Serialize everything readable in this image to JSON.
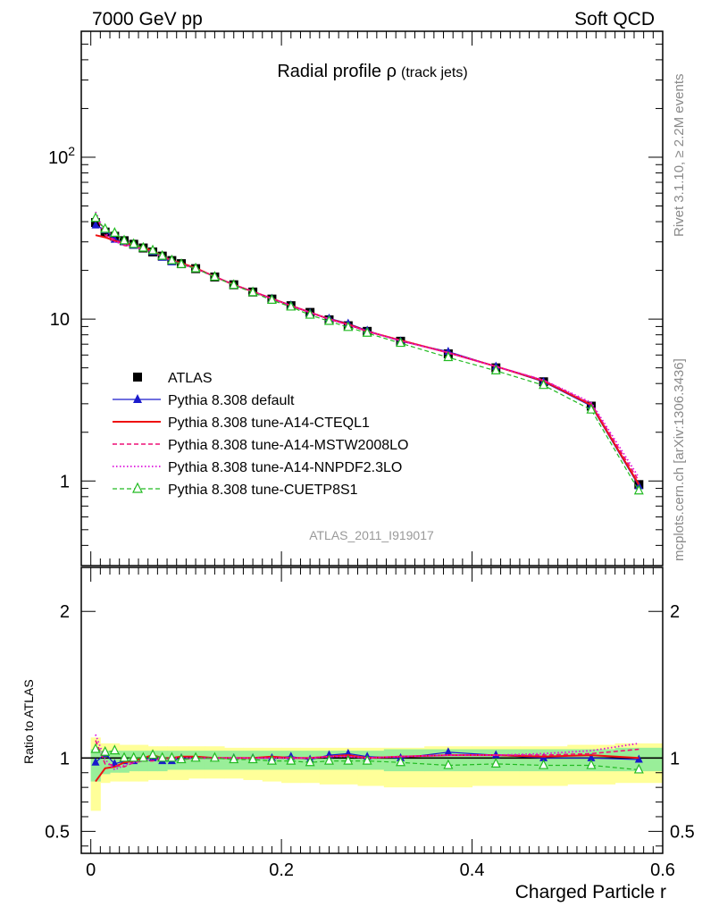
{
  "header": {
    "left": "7000 GeV pp",
    "right": "Soft QCD"
  },
  "title": {
    "main": "Radial profile ρ",
    "sub": "(track jets)"
  },
  "side_labels": {
    "top": "Rivet 3.1.10, ≥ 2.2M events",
    "bottom": "mcplots.cern.ch [arXiv:1306.3436]"
  },
  "watermark": "ATLAS_2011_I919017",
  "xlabel": "Charged Particle r",
  "ratio_ylabel": "Ratio to ATLAS",
  "colors": {
    "atlas": "#000000",
    "default": "#1a1acc",
    "cteql1": "#ee1111",
    "mstw": "#ee1177",
    "nnpdf": "#dd11dd",
    "cuetp8s1": "#22bb22",
    "band_yellow": "#ffff99",
    "band_green": "#99ee99"
  },
  "chart_data": [
    {
      "type": "line",
      "yscale": "log",
      "xlim": [
        -0.01,
        0.6
      ],
      "ylim": [
        0.3,
        600
      ],
      "y_ticks": [
        "1",
        "10",
        "10^2"
      ],
      "x": [
        0.005,
        0.015,
        0.025,
        0.035,
        0.045,
        0.055,
        0.065,
        0.075,
        0.085,
        0.095,
        0.11,
        0.13,
        0.15,
        0.17,
        0.19,
        0.21,
        0.23,
        0.25,
        0.27,
        0.29,
        0.325,
        0.375,
        0.425,
        0.475,
        0.525,
        0.575
      ],
      "series": [
        {
          "name": "ATLAS",
          "style": "marker-square",
          "values": [
            39.5,
            34.5,
            32.5,
            30.5,
            29,
            27.5,
            26,
            24.5,
            23,
            22,
            20.5,
            18.2,
            16.3,
            14.7,
            13.3,
            12.1,
            11,
            9.9,
            9.1,
            8.4,
            7.3,
            6.1,
            5.0,
            4.1,
            2.9,
            0.95
          ]
        },
        {
          "name": "Pythia 8.308 default",
          "style": "line-triangle",
          "values": [
            38,
            35.5,
            31,
            30,
            28.5,
            27.5,
            26,
            24,
            22.5,
            22,
            20.5,
            18.3,
            16.3,
            14.8,
            13.4,
            12.2,
            10.9,
            10.1,
            9.4,
            8.5,
            7.3,
            6.3,
            5.1,
            4.1,
            2.9,
            0.93
          ]
        },
        {
          "name": "Pythia 8.308 tune-A14-CTEQL1",
          "style": "line-solid",
          "values": [
            33,
            32,
            30.5,
            29.5,
            28.5,
            27.5,
            26.5,
            24.5,
            23,
            22.2,
            20.7,
            18.3,
            16.3,
            14.8,
            13.4,
            12.1,
            11,
            10,
            9.3,
            8.4,
            7.4,
            6.2,
            5.1,
            4.15,
            2.95,
            0.95
          ]
        },
        {
          "name": "Pythia 8.308 tune-A14-MSTW2008LO",
          "style": "line-dashed",
          "values": [
            44,
            33,
            31,
            28.5,
            28,
            27,
            25.5,
            24.5,
            22.8,
            21.8,
            20.5,
            18.3,
            16.3,
            14.8,
            13.4,
            12.1,
            11,
            10,
            9.2,
            8.4,
            7.35,
            6.2,
            5.1,
            4.2,
            3.0,
            1.0
          ]
        },
        {
          "name": "Pythia 8.308 tune-A14-NNPDF2.3LO",
          "style": "line-dotted",
          "values": [
            46,
            34,
            30,
            29,
            28,
            27,
            26,
            24.5,
            23,
            22,
            20.5,
            18.3,
            16.3,
            14.8,
            13.4,
            12.1,
            11,
            10,
            9.2,
            8.4,
            7.35,
            6.2,
            5.1,
            4.2,
            3.05,
            1.05
          ]
        },
        {
          "name": "Pythia 8.308 tune-CUETP8S1",
          "style": "dashed-open-triangle",
          "values": [
            42,
            36,
            34,
            30.5,
            29,
            27.5,
            26.5,
            24.5,
            23,
            21.8,
            20.5,
            18.2,
            16.2,
            14.6,
            13.1,
            11.9,
            10.6,
            9.7,
            8.9,
            8.2,
            7.1,
            5.8,
            4.8,
            3.9,
            2.75,
            0.87
          ]
        }
      ]
    },
    {
      "type": "line",
      "ylabel": "Ratio to ATLAS",
      "xlabel": "Charged Particle r",
      "xlim": [
        -0.01,
        0.6
      ],
      "ylim": [
        0.35,
        2.3
      ],
      "x_ticks": [
        "0",
        "0.2",
        "0.4",
        "0.6"
      ],
      "y_ticks": [
        "0.5",
        "1",
        "2"
      ],
      "x": [
        0.005,
        0.015,
        0.025,
        0.035,
        0.045,
        0.055,
        0.065,
        0.075,
        0.085,
        0.095,
        0.11,
        0.13,
        0.15,
        0.17,
        0.19,
        0.21,
        0.23,
        0.25,
        0.27,
        0.29,
        0.325,
        0.375,
        0.425,
        0.475,
        0.525,
        0.575
      ],
      "bands": {
        "yellow_low": [
          0.64,
          0.83,
          0.84,
          0.84,
          0.84,
          0.84,
          0.85,
          0.85,
          0.85,
          0.85,
          0.86,
          0.86,
          0.86,
          0.85,
          0.84,
          0.83,
          0.83,
          0.82,
          0.82,
          0.81,
          0.8,
          0.8,
          0.81,
          0.81,
          0.82,
          0.83
        ],
        "yellow_high": [
          1.14,
          1.1,
          1.1,
          1.09,
          1.09,
          1.09,
          1.08,
          1.08,
          1.08,
          1.08,
          1.08,
          1.08,
          1.07,
          1.07,
          1.07,
          1.07,
          1.07,
          1.07,
          1.07,
          1.07,
          1.07,
          1.08,
          1.08,
          1.08,
          1.09,
          1.1
        ],
        "green_low": [
          0.84,
          0.89,
          0.9,
          0.9,
          0.91,
          0.91,
          0.91,
          0.91,
          0.92,
          0.92,
          0.92,
          0.92,
          0.92,
          0.92,
          0.92,
          0.92,
          0.92,
          0.92,
          0.92,
          0.92,
          0.91,
          0.91,
          0.91,
          0.91,
          0.91,
          0.91
        ],
        "green_high": [
          1.06,
          1.05,
          1.05,
          1.05,
          1.05,
          1.05,
          1.05,
          1.05,
          1.05,
          1.05,
          1.05,
          1.05,
          1.05,
          1.05,
          1.05,
          1.05,
          1.05,
          1.05,
          1.05,
          1.05,
          1.06,
          1.06,
          1.06,
          1.06,
          1.06,
          1.07
        ]
      },
      "series": [
        {
          "name": "ATLAS",
          "values": [
            1,
            1,
            1,
            1,
            1,
            1,
            1,
            1,
            1,
            1,
            1,
            1,
            1,
            1,
            1,
            1,
            1,
            1,
            1,
            1,
            1,
            1,
            1,
            1,
            1,
            1
          ]
        },
        {
          "name": "Pythia 8.308 default",
          "values": [
            0.97,
            1.03,
            0.96,
            0.98,
            0.98,
            1.0,
            1.0,
            0.98,
            0.98,
            1.0,
            1.0,
            1.0,
            1.0,
            1.0,
            1.0,
            1.01,
            0.99,
            1.02,
            1.03,
            1.01,
            1.0,
            1.04,
            1.02,
            1.0,
            1.0,
            0.99
          ]
        },
        {
          "name": "Pythia 8.308 tune-A14-CTEQL1",
          "values": [
            0.84,
            0.93,
            0.94,
            0.97,
            0.98,
            1.0,
            1.02,
            1.0,
            1.0,
            1.01,
            1.01,
            1.0,
            1.0,
            1.0,
            1.01,
            1.0,
            1.0,
            1.01,
            1.02,
            1.0,
            1.01,
            1.02,
            1.02,
            1.01,
            1.02,
            1.0
          ]
        },
        {
          "name": "Pythia 8.308 tune-A14-MSTW2008LO",
          "values": [
            1.12,
            0.96,
            0.95,
            0.94,
            0.97,
            0.98,
            0.98,
            1.0,
            0.99,
            0.99,
            1.0,
            1.0,
            1.0,
            1.0,
            1.0,
            1.0,
            1.0,
            1.01,
            1.01,
            1.0,
            1.01,
            1.02,
            1.02,
            1.02,
            1.03,
            1.06
          ]
        },
        {
          "name": "Pythia 8.308 tune-A14-NNPDF2.3LO",
          "values": [
            1.16,
            0.99,
            0.92,
            0.95,
            0.97,
            0.98,
            1.0,
            1.0,
            1.0,
            1.0,
            1.0,
            1.0,
            1.0,
            1.0,
            1.0,
            1.0,
            1.0,
            1.01,
            1.01,
            1.0,
            1.01,
            1.02,
            1.02,
            1.03,
            1.05,
            1.1
          ]
        },
        {
          "name": "Pythia 8.308 tune-CUETP8S1",
          "values": [
            1.06,
            1.04,
            1.05,
            1.0,
            1.0,
            1.0,
            1.02,
            1.0,
            1.0,
            0.99,
            1.0,
            1.0,
            0.99,
            0.99,
            0.98,
            0.98,
            0.97,
            0.98,
            0.98,
            0.98,
            0.97,
            0.95,
            0.96,
            0.95,
            0.95,
            0.92
          ]
        }
      ]
    }
  ]
}
